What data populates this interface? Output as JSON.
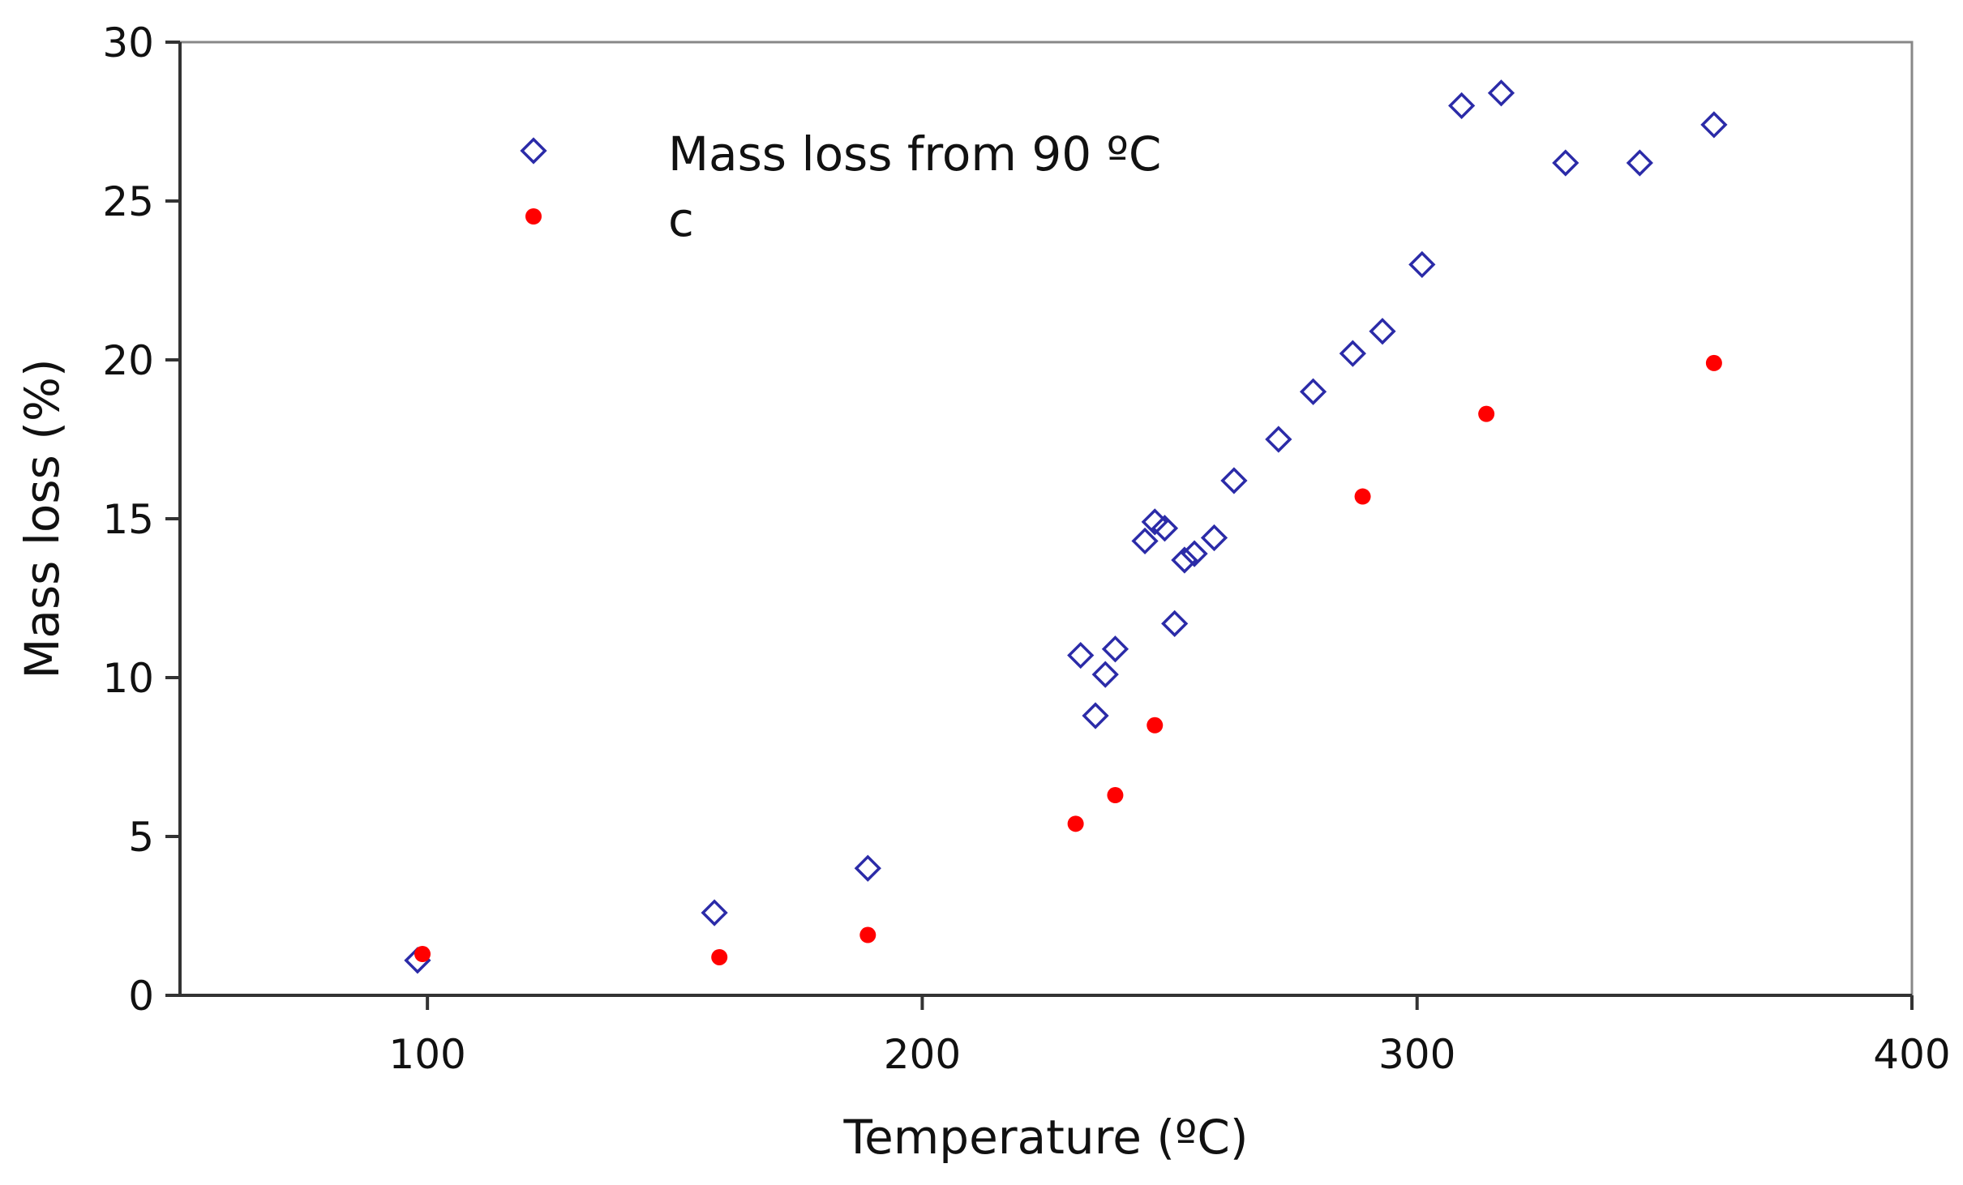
{
  "chart_data": {
    "type": "scatter",
    "title": "",
    "xlabel": "Temperature (ºC)",
    "ylabel": "Mass loss (%)",
    "xlim": [
      50,
      400
    ],
    "ylim": [
      0,
      30
    ],
    "xticks": [
      100,
      200,
      300,
      400
    ],
    "yticks": [
      0,
      5,
      10,
      15,
      20,
      25,
      30
    ],
    "grid": false,
    "legend_position": "top-left",
    "colors": {
      "series_1": "#2b2ba8",
      "series_2": "#ff0000",
      "axis": "#333333",
      "frame": "#888888"
    },
    "series": [
      {
        "name": "Mass loss from 90 ºC",
        "marker": "diamond-open",
        "color": "#2b2ba8",
        "points": [
          {
            "x": 98,
            "y": 1.1
          },
          {
            "x": 158,
            "y": 2.6
          },
          {
            "x": 189,
            "y": 4.0
          },
          {
            "x": 232,
            "y": 10.7
          },
          {
            "x": 235,
            "y": 8.8
          },
          {
            "x": 237,
            "y": 10.1
          },
          {
            "x": 239,
            "y": 10.9
          },
          {
            "x": 245,
            "y": 14.3
          },
          {
            "x": 247,
            "y": 14.9
          },
          {
            "x": 249,
            "y": 14.7
          },
          {
            "x": 251,
            "y": 11.7
          },
          {
            "x": 253,
            "y": 13.7
          },
          {
            "x": 255,
            "y": 13.9
          },
          {
            "x": 259,
            "y": 14.4
          },
          {
            "x": 263,
            "y": 16.2
          },
          {
            "x": 272,
            "y": 17.5
          },
          {
            "x": 279,
            "y": 19.0
          },
          {
            "x": 287,
            "y": 20.2
          },
          {
            "x": 293,
            "y": 20.9
          },
          {
            "x": 301,
            "y": 23.0
          },
          {
            "x": 309,
            "y": 28.0
          },
          {
            "x": 317,
            "y": 28.4
          },
          {
            "x": 330,
            "y": 26.2
          },
          {
            "x": 345,
            "y": 26.2
          },
          {
            "x": 360,
            "y": 27.4
          }
        ]
      },
      {
        "name": "c",
        "marker": "dot-filled",
        "color": "#ff0000",
        "points": [
          {
            "x": 99,
            "y": 1.3
          },
          {
            "x": 159,
            "y": 1.2
          },
          {
            "x": 189,
            "y": 1.9
          },
          {
            "x": 231,
            "y": 5.4
          },
          {
            "x": 239,
            "y": 6.3
          },
          {
            "x": 247,
            "y": 8.5
          },
          {
            "x": 289,
            "y": 15.7
          },
          {
            "x": 314,
            "y": 18.3
          },
          {
            "x": 360,
            "y": 19.9
          }
        ]
      }
    ]
  }
}
